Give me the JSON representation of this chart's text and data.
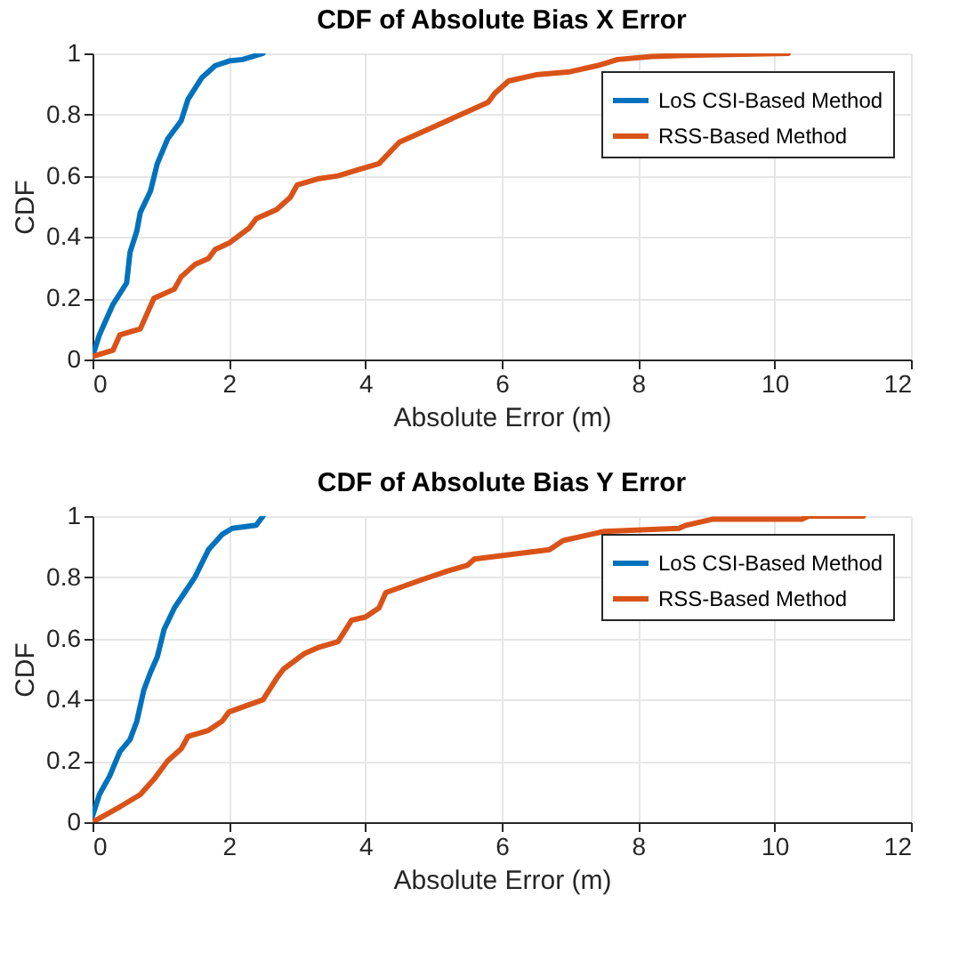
{
  "chart_data": [
    {
      "type": "line",
      "title": "CDF of Absolute Bias X Error",
      "xlabel": "Absolute Error (m)",
      "ylabel": "CDF",
      "xlim": [
        0,
        12
      ],
      "xticks": [
        0,
        2,
        4,
        6,
        8,
        10,
        12
      ],
      "ylim": [
        0,
        1
      ],
      "yticks": [
        0,
        0.2,
        0.4,
        0.6,
        0.8,
        1
      ],
      "grid": true,
      "legend": "top right",
      "line_style": "solid",
      "series": [
        {
          "name": "LoS CSI-Based Method",
          "color": "#0072bd",
          "x": [
            0,
            0.1,
            0.2,
            0.3,
            0.5,
            0.55,
            0.65,
            0.7,
            0.85,
            0.95,
            1.1,
            1.3,
            1.4,
            1.6,
            1.8,
            2.0,
            2.2,
            2.5
          ],
          "values": [
            0.01,
            0.08,
            0.13,
            0.18,
            0.25,
            0.35,
            0.42,
            0.48,
            0.55,
            0.64,
            0.72,
            0.78,
            0.85,
            0.92,
            0.96,
            0.975,
            0.98,
            1.0
          ]
        },
        {
          "name": "RSS-Based Method",
          "color": "#d95319",
          "x": [
            0,
            0.3,
            0.4,
            0.7,
            0.9,
            1.2,
            1.3,
            1.5,
            1.7,
            1.8,
            2.0,
            2.3,
            2.4,
            2.7,
            2.9,
            3.0,
            3.3,
            3.6,
            3.9,
            4.2,
            4.5,
            4.8,
            5.2,
            5.8,
            5.9,
            6.1,
            6.5,
            7.0,
            7.4,
            7.7,
            8.2,
            9.0,
            10.2
          ],
          "values": [
            0.01,
            0.03,
            0.08,
            0.1,
            0.2,
            0.23,
            0.27,
            0.31,
            0.33,
            0.36,
            0.38,
            0.43,
            0.46,
            0.49,
            0.53,
            0.57,
            0.59,
            0.6,
            0.62,
            0.64,
            0.71,
            0.74,
            0.78,
            0.84,
            0.87,
            0.91,
            0.93,
            0.94,
            0.96,
            0.98,
            0.99,
            0.995,
            1.0
          ]
        }
      ]
    },
    {
      "type": "line",
      "title": "CDF of Absolute Bias Y Error",
      "xlabel": "Absolute Error (m)",
      "ylabel": "CDF",
      "xlim": [
        0,
        12
      ],
      "xticks": [
        0,
        2,
        4,
        6,
        8,
        10,
        12
      ],
      "ylim": [
        0,
        1
      ],
      "yticks": [
        0,
        0.2,
        0.4,
        0.6,
        0.8,
        1
      ],
      "grid": true,
      "legend": "top right",
      "line_style": "solid",
      "series": [
        {
          "name": "LoS CSI-Based Method",
          "color": "#0072bd",
          "x": [
            0,
            0.1,
            0.25,
            0.4,
            0.55,
            0.65,
            0.75,
            0.85,
            0.95,
            1.05,
            1.2,
            1.35,
            1.5,
            1.7,
            1.9,
            2.05,
            2.4,
            2.5
          ],
          "values": [
            0.02,
            0.09,
            0.15,
            0.23,
            0.27,
            0.33,
            0.43,
            0.49,
            0.54,
            0.63,
            0.7,
            0.75,
            0.8,
            0.89,
            0.94,
            0.96,
            0.97,
            1.0
          ]
        },
        {
          "name": "RSS-Based Method",
          "color": "#d95319",
          "x": [
            0,
            0.4,
            0.7,
            0.9,
            1.1,
            1.3,
            1.4,
            1.7,
            1.9,
            2.0,
            2.5,
            2.7,
            2.8,
            3.1,
            3.3,
            3.6,
            3.8,
            4.0,
            4.2,
            4.3,
            4.8,
            5.2,
            5.5,
            5.6,
            6.7,
            6.9,
            7.3,
            7.5,
            8.6,
            8.7,
            9.1,
            10.4,
            10.5,
            11.3
          ],
          "values": [
            0.0,
            0.05,
            0.09,
            0.14,
            0.2,
            0.24,
            0.28,
            0.3,
            0.33,
            0.36,
            0.4,
            0.47,
            0.5,
            0.55,
            0.57,
            0.59,
            0.66,
            0.67,
            0.7,
            0.75,
            0.79,
            0.82,
            0.84,
            0.86,
            0.89,
            0.92,
            0.94,
            0.95,
            0.96,
            0.97,
            0.99,
            0.99,
            1.0,
            1.0
          ]
        }
      ]
    }
  ]
}
